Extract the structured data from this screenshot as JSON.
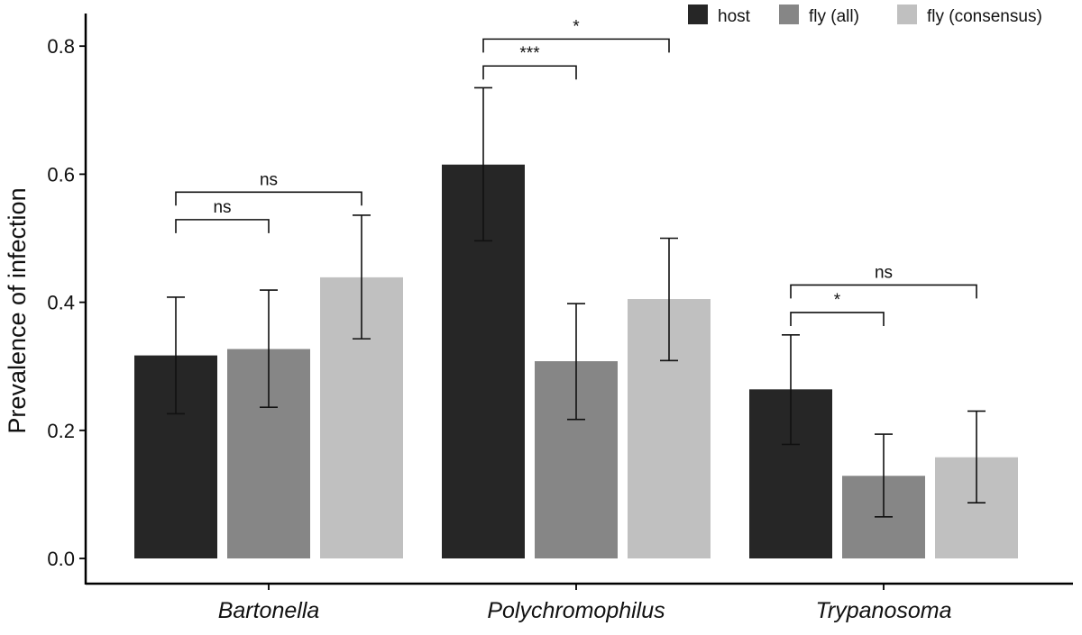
{
  "chart_data": {
    "type": "bar",
    "ylabel": "Prevalence of infection",
    "xlabel": "",
    "ylim": [
      0,
      0.85
    ],
    "y_ticks": [
      "0.0",
      "0.2",
      "0.4",
      "0.6",
      "0.8"
    ],
    "grid": false,
    "legend_position": "top-right",
    "categories": [
      "Bartonella",
      "Polychromophilus",
      "Trypanosoma"
    ],
    "series": [
      {
        "name": "host",
        "color": "#262626",
        "values": [
          0.317,
          0.615,
          0.264
        ],
        "error_low": [
          0.226,
          0.496,
          0.178
        ],
        "error_high": [
          0.408,
          0.735,
          0.349
        ]
      },
      {
        "name": "fly (all)",
        "color": "#868686",
        "values": [
          0.327,
          0.308,
          0.129
        ],
        "error_low": [
          0.236,
          0.217,
          0.065
        ],
        "error_high": [
          0.419,
          0.398,
          0.194
        ]
      },
      {
        "name": "fly (consensus)",
        "color": "#c0c0c0",
        "values": [
          0.439,
          0.405,
          0.158
        ],
        "error_low": [
          0.343,
          0.309,
          0.087
        ],
        "error_high": [
          0.536,
          0.5,
          0.23
        ]
      }
    ],
    "annotations": [
      {
        "category": 0,
        "from": 0,
        "to": 1,
        "label": "ns",
        "level": 0.529
      },
      {
        "category": 0,
        "from": 0,
        "to": 2,
        "label": "ns",
        "level": 0.572
      },
      {
        "category": 1,
        "from": 0,
        "to": 1,
        "label": "***",
        "level": 0.769
      },
      {
        "category": 1,
        "from": 0,
        "to": 2,
        "label": "*",
        "level": 0.811
      },
      {
        "category": 2,
        "from": 0,
        "to": 1,
        "label": "*",
        "level": 0.384
      },
      {
        "category": 2,
        "from": 0,
        "to": 2,
        "label": "ns",
        "level": 0.427
      }
    ]
  }
}
